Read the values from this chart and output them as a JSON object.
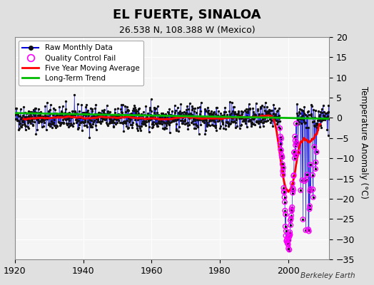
{
  "title": "EL FUERTE, SINALOA",
  "subtitle": "26.538 N, 108.388 W (Mexico)",
  "ylabel": "Temperature Anomaly (°C)",
  "attribution": "Berkeley Earth",
  "xlim": [
    1920,
    2012
  ],
  "ylim": [
    -35,
    20
  ],
  "yticks": [
    -35,
    -30,
    -25,
    -20,
    -15,
    -10,
    -5,
    0,
    5,
    10,
    15,
    20
  ],
  "xticks": [
    1920,
    1940,
    1960,
    1980,
    2000
  ],
  "fig_bg_color": "#e0e0e0",
  "plot_bg_color": "#f5f5f5",
  "grid_color": "#ffffff",
  "raw_color": "#0000dd",
  "raw_dot_color": "#111111",
  "qc_color": "#ff00ff",
  "moving_avg_color": "#ff0000",
  "trend_color": "#00bb00",
  "seed": 42
}
